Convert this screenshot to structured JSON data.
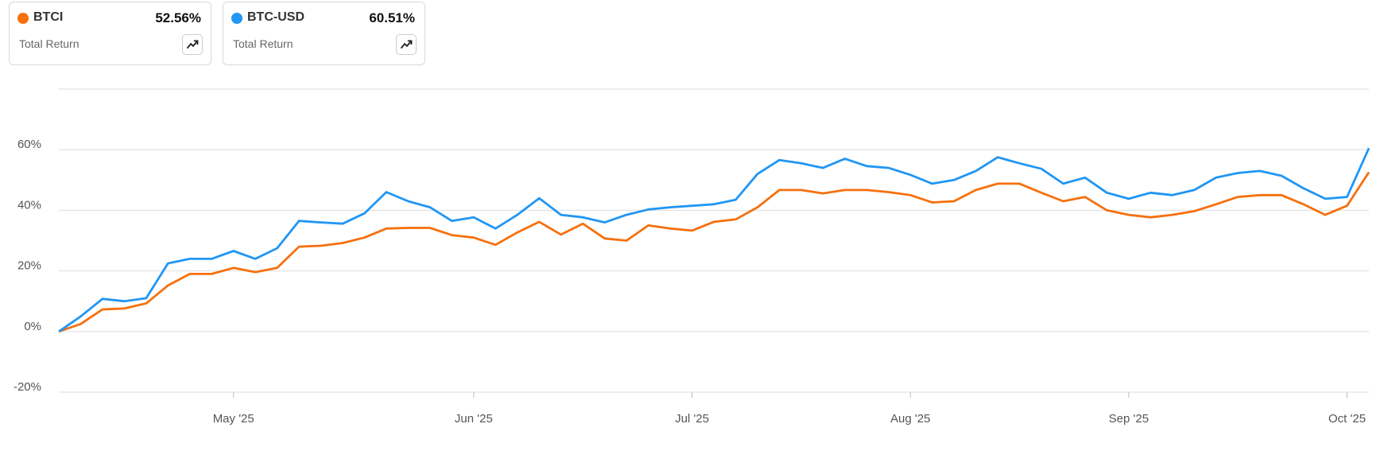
{
  "chart_data": {
    "type": "line",
    "metric_label": "Total Return",
    "categories": [
      null,
      null,
      null,
      null,
      null,
      null,
      null,
      null,
      "May '25",
      null,
      null,
      null,
      null,
      null,
      null,
      null,
      null,
      null,
      null,
      "Jun '25",
      null,
      null,
      null,
      null,
      null,
      null,
      null,
      null,
      null,
      "Jul '25",
      null,
      null,
      null,
      null,
      null,
      null,
      null,
      null,
      null,
      "Aug '25",
      null,
      null,
      null,
      null,
      null,
      null,
      null,
      null,
      null,
      "Sep '25",
      null,
      null,
      null,
      null,
      null,
      null,
      null,
      null,
      null,
      "Oct '25",
      null
    ],
    "series": [
      {
        "name": "BTCI",
        "color": "#f6700e",
        "total_return": "52.56%",
        "values": [
          0,
          2.5,
          7.3,
          7.6,
          9.3,
          15.2,
          19,
          19,
          21,
          19.6,
          21,
          28,
          28.3,
          29.2,
          31,
          34,
          34.2,
          34.2,
          31.8,
          31,
          28.6,
          32.7,
          36.2,
          32,
          35.6,
          30.7,
          30,
          35,
          34,
          33.3,
          36.2,
          37,
          41,
          46.7,
          46.7,
          45.6,
          46.7,
          46.7,
          46,
          45,
          42.6,
          43,
          46.7,
          48.8,
          48.8,
          45.8,
          43,
          44.4,
          40,
          38.5,
          37.7,
          38.5,
          39.7,
          42,
          44.4,
          45,
          45,
          42,
          38.5,
          41.5,
          52.56
        ]
      },
      {
        "name": "BTC-USD",
        "color": "#2196f3",
        "total_return": "60.51%",
        "values": [
          0,
          5,
          10.8,
          10,
          11,
          22.5,
          24,
          24,
          26.6,
          24,
          27.5,
          36.5,
          36,
          35.6,
          39,
          46,
          43,
          41,
          36.5,
          37.7,
          34,
          38.5,
          44,
          38.5,
          37.7,
          36,
          38.5,
          40.3,
          41,
          41.5,
          42,
          43.5,
          52,
          56.6,
          55.5,
          54,
          57,
          54.6,
          54,
          51.7,
          48.8,
          50,
          53,
          57.5,
          55.5,
          53.7,
          48.8,
          50.8,
          45.8,
          43.8,
          45.8,
          45,
          46.7,
          50.8,
          52.3,
          53,
          51.4,
          47.3,
          43.8,
          44.4,
          60.51
        ]
      }
    ],
    "ylim": [
      -20,
      80
    ],
    "yticks": [
      {
        "value": -20,
        "label": "-20%"
      },
      {
        "value": 0,
        "label": "0%"
      },
      {
        "value": 20,
        "label": "20%"
      },
      {
        "value": 40,
        "label": "40%"
      },
      {
        "value": 60,
        "label": "60%"
      }
    ],
    "grid": true
  }
}
